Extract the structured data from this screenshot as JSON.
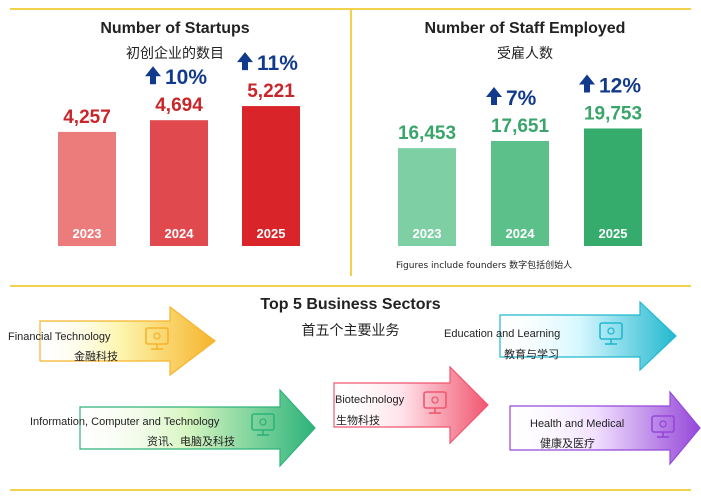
{
  "chart_data": [
    {
      "type": "bar",
      "title": "Number of Startups",
      "subtitle": "初创企业的数目",
      "categories": [
        "2023",
        "2024",
        "2025"
      ],
      "values": [
        4257,
        4694,
        5221
      ],
      "value_labels": [
        "4,257",
        "4,694",
        "5,221"
      ],
      "growth_labels": [
        "",
        "10%",
        "11%"
      ],
      "colors": [
        "#ec7c7c",
        "#e04a4e",
        "#d92529"
      ],
      "value_color": "#c8262b"
    },
    {
      "type": "bar",
      "title": "Number of Staff Employed",
      "subtitle": "受雇人数",
      "categories": [
        "2023",
        "2024",
        "2025"
      ],
      "values": [
        16453,
        17651,
        19753
      ],
      "value_labels": [
        "16,453",
        "17,651",
        "19,753"
      ],
      "growth_labels": [
        "",
        "7%",
        "12%"
      ],
      "colors": [
        "#7fcfa5",
        "#5cc08b",
        "#35ac6c"
      ],
      "value_color": "#3aa56b",
      "note": "Figures include founders  数字包括创始人"
    }
  ],
  "growth_color": "#123a8c",
  "sectors": {
    "title": "Top 5 Business Sectors",
    "subtitle": "首五个主要业务",
    "items": [
      {
        "en": "Financial Technology",
        "zh": "金融科技",
        "icon": "fintech-icon",
        "colors": [
          "#fdf6b0",
          "#f6b42c"
        ]
      },
      {
        "en": "Information, Computer and Technology",
        "zh": "资讯、电脑及科技",
        "icon": "computer-chip-icon",
        "colors": [
          "#d8f6c2",
          "#2db37a"
        ]
      },
      {
        "en": "Biotechnology",
        "zh": "生物科技",
        "icon": "dna-icon",
        "colors": [
          "#ffe0e8",
          "#f0566f"
        ]
      },
      {
        "en": "Education and Learning",
        "zh": "教育与学习",
        "icon": "books-icon",
        "colors": [
          "#d6f7ff",
          "#22b8cf"
        ]
      },
      {
        "en": "Health and Medical",
        "zh": "健康及医疗",
        "icon": "heartbeat-icon",
        "colors": [
          "#f1e0ff",
          "#9547d8"
        ]
      }
    ]
  }
}
